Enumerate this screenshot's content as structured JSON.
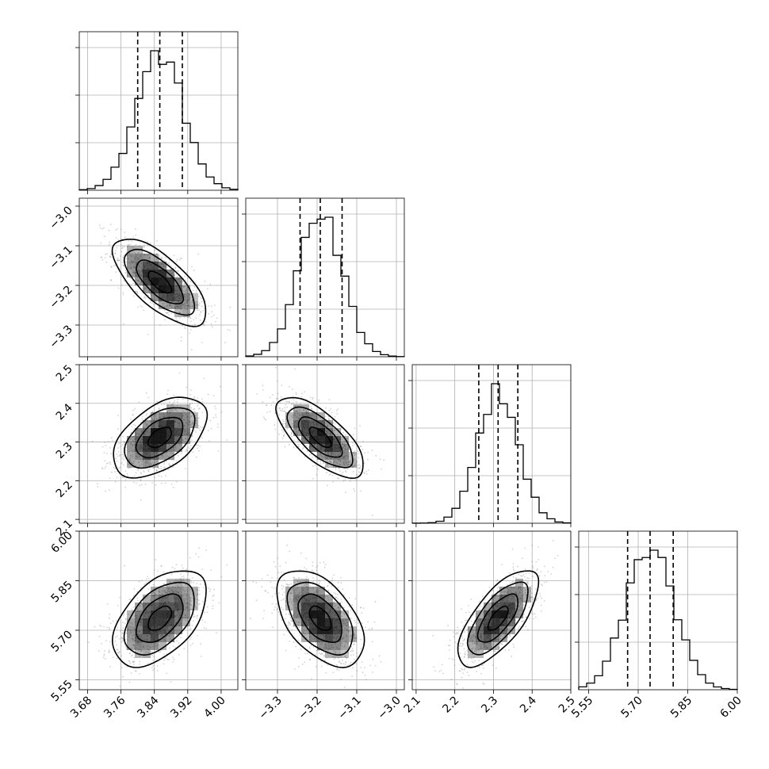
{
  "chart_data": {
    "type": "corner",
    "grid": true,
    "colors": {
      "density": "#000000",
      "line": "#000000",
      "grid": "#b0b0b0",
      "scatter": "#7f7f7f"
    },
    "params": [
      {
        "range": [
          3.66,
          4.04
        ],
        "ticks": [
          "3.68",
          "3.76",
          "3.84",
          "3.92",
          "4.00"
        ],
        "tick_values": [
          3.68,
          3.76,
          3.84,
          3.92,
          4.0
        ],
        "mean": 3.853,
        "sd": 0.056,
        "quantiles": [
          3.8,
          3.853,
          3.907
        ]
      },
      {
        "range": [
          -3.38,
          -2.98
        ],
        "ticks": [
          "−3.3",
          "−3.2",
          "−3.1",
          "−3.0"
        ],
        "tick_values": [
          -3.3,
          -3.2,
          -3.1,
          -3.0
        ],
        "mean": -3.192,
        "sd": 0.055,
        "quantiles": [
          -3.243,
          -3.192,
          -3.137
        ]
      },
      {
        "range": [
          2.09,
          2.5
        ],
        "ticks": [
          "2.1",
          "2.2",
          "2.3",
          "2.4",
          "2.5"
        ],
        "tick_values": [
          2.1,
          2.2,
          2.3,
          2.4,
          2.5
        ],
        "mean": 2.312,
        "sd": 0.052,
        "quantiles": [
          2.262,
          2.312,
          2.363
        ]
      },
      {
        "range": [
          5.52,
          6.0
        ],
        "ticks": [
          "5.55",
          "5.70",
          "5.85",
          "6.00"
        ],
        "tick_values": [
          5.55,
          5.7,
          5.85,
          6.0
        ],
        "mean": 5.736,
        "sd": 0.073,
        "quantiles": [
          5.668,
          5.736,
          5.806
        ]
      }
    ],
    "correlations": [
      {
        "i": 1,
        "j": 0,
        "rho": -0.7
      },
      {
        "i": 2,
        "j": 0,
        "rho": 0.5
      },
      {
        "i": 2,
        "j": 1,
        "rho": -0.7
      },
      {
        "i": 3,
        "j": 0,
        "rho": 0.5
      },
      {
        "i": 3,
        "j": 1,
        "rho": -0.5
      },
      {
        "i": 3,
        "j": 2,
        "rho": 0.7
      }
    ],
    "contour_levels_sigma": [
      0.5,
      1.0,
      1.5,
      2.0
    ]
  }
}
